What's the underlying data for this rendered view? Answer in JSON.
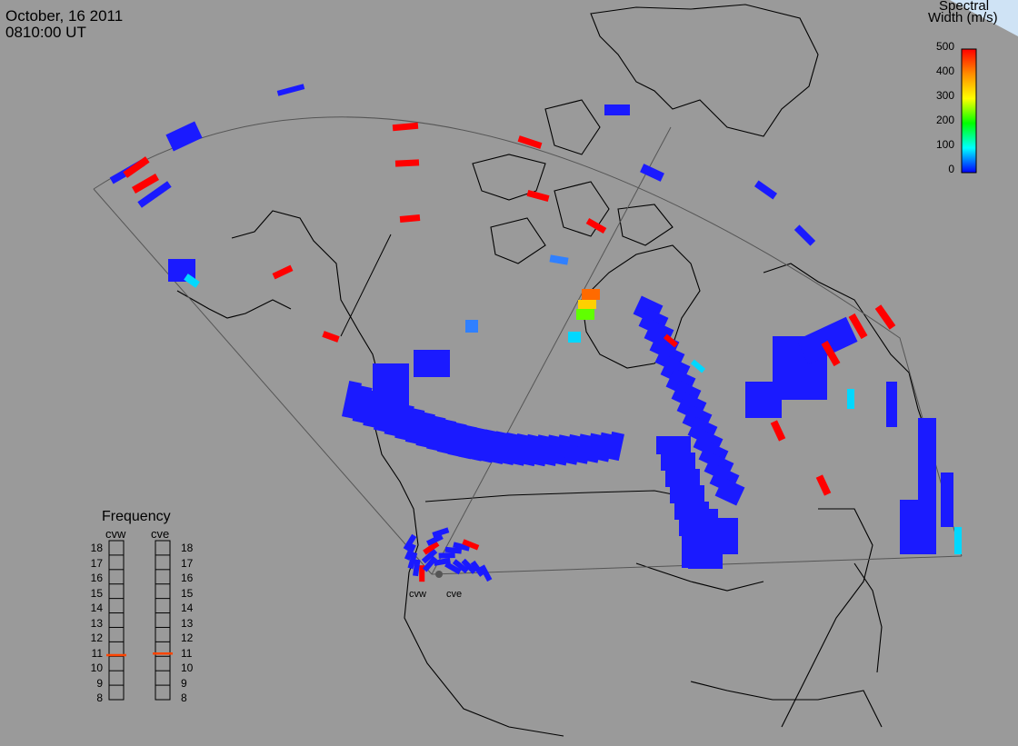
{
  "header": {
    "date": "October, 16 2011",
    "time": "0810:00 UT"
  },
  "colorbar": {
    "title_line1": "Spectral",
    "title_line2": "Width (m/s)",
    "ticks": [
      "500",
      "400",
      "300",
      "200",
      "100",
      "0"
    ],
    "colors": [
      "#ff0000",
      "#ff8c00",
      "#ffff00",
      "#00ff00",
      "#00ffff",
      "#0000ff"
    ]
  },
  "frequency_panel": {
    "title": "Frequency",
    "left_label": "cvw",
    "right_label": "cve",
    "ticks": [
      "18",
      "17",
      "16",
      "15",
      "14",
      "13",
      "12",
      "11",
      "10",
      "9",
      "8"
    ],
    "cvw_freq": 10.8,
    "cve_freq": 10.9,
    "marker_color": "#ff4500"
  },
  "stations": {
    "west": "cvw",
    "east": "cve"
  },
  "colors": {
    "background": "#9a9a9a",
    "echo_low": "#1a1aff",
    "echo_high": "#ff0000"
  }
}
